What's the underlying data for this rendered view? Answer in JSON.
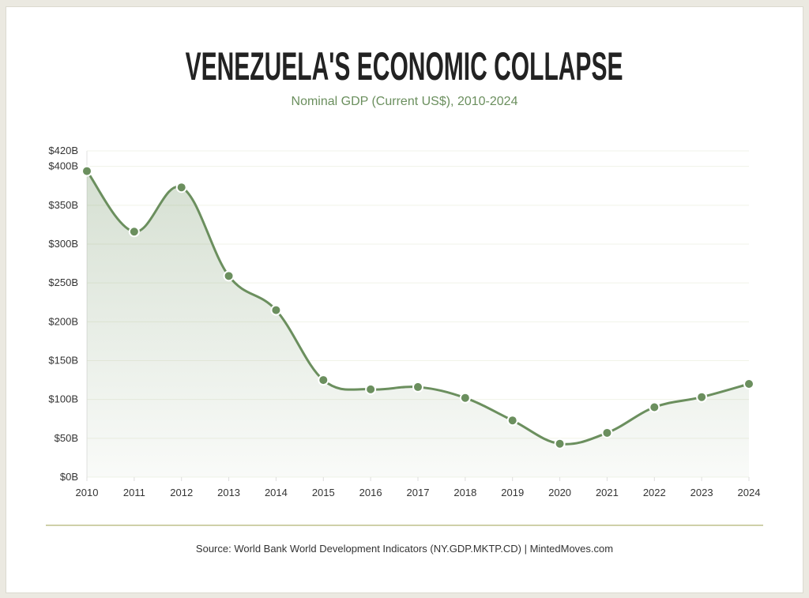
{
  "title": "VENEZUELA'S ECONOMIC COLLAPSE",
  "subtitle": "Nominal GDP (Current US$), 2010-2024",
  "source": "Source: World Bank World Development Indicators (NY.GDP.MKTP.CD) | MintedMoves.com",
  "colors": {
    "line": "#6b8f5e",
    "fill": "#6b8f5e",
    "grid": "#f1f3e8",
    "footer_rule": "#cfd0a8"
  },
  "chart_data": {
    "type": "area",
    "title": "VENEZUELA'S ECONOMIC COLLAPSE",
    "subtitle": "Nominal GDP (Current US$), 2010-2024",
    "xlabel": "",
    "ylabel": "",
    "categories": [
      "2010",
      "2011",
      "2012",
      "2013",
      "2014",
      "2015",
      "2016",
      "2017",
      "2018",
      "2019",
      "2020",
      "2021",
      "2022",
      "2023",
      "2024"
    ],
    "values": [
      394,
      316,
      373,
      259,
      215,
      125,
      113,
      116,
      102,
      73,
      43,
      57,
      90,
      103,
      120
    ],
    "unit": "billion US$",
    "ylim": [
      0,
      420
    ],
    "yticks": [
      0,
      50,
      100,
      150,
      200,
      250,
      300,
      350,
      400,
      420
    ],
    "ytick_labels": [
      "$0B",
      "$50B",
      "$100B",
      "$150B",
      "$200B",
      "$250B",
      "$300B",
      "$350B",
      "$400B",
      "$420B"
    ],
    "grid": true,
    "legend": "none",
    "smooth": true
  }
}
